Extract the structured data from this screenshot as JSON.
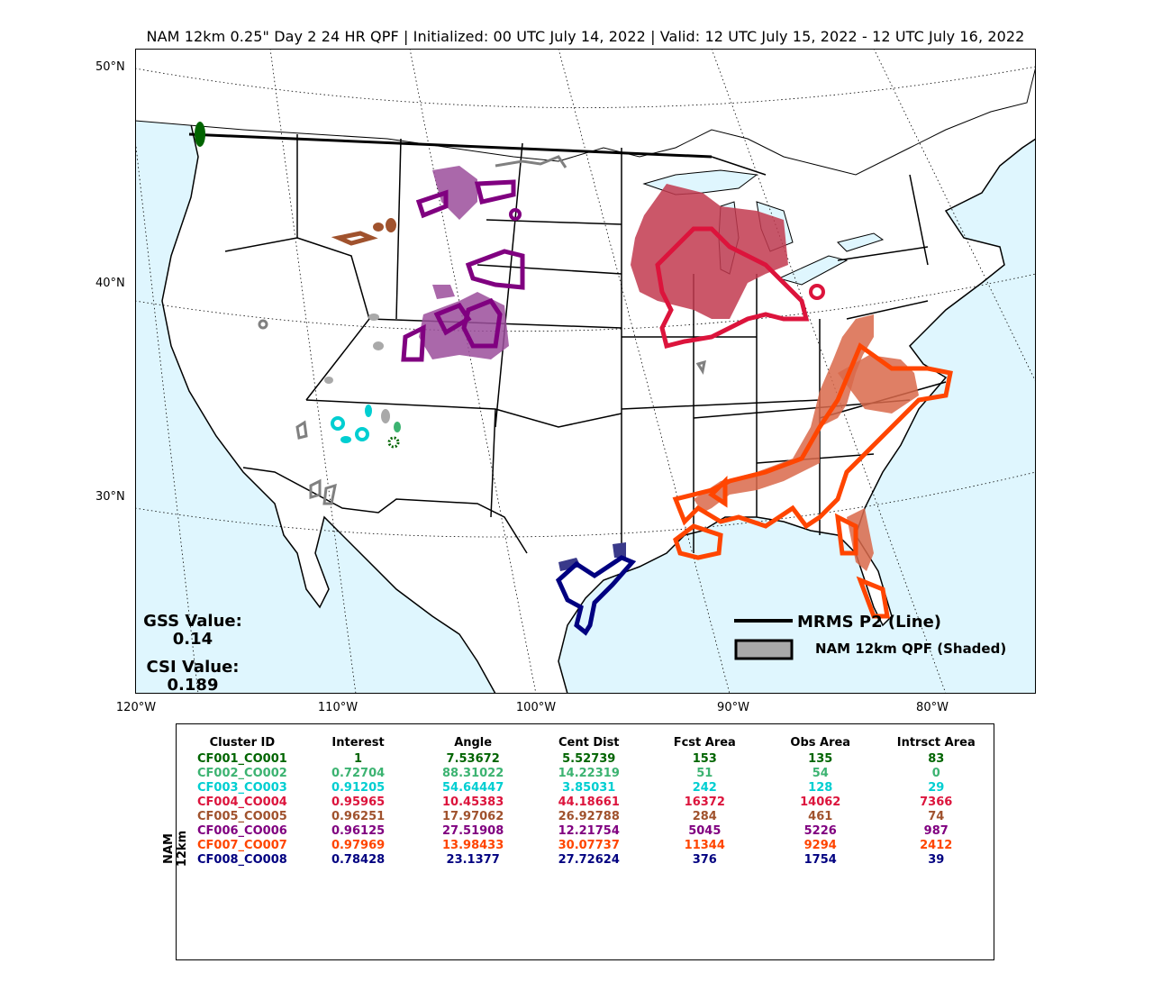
{
  "title": "NAM 12km 0.25\" Day 2 24 HR QPF | Initialized: 00 UTC July 14, 2022 | Valid: 12 UTC July 15, 2022 - 12 UTC July 16, 2022",
  "lat_labels": [
    "50°N",
    "40°N",
    "30°N"
  ],
  "lon_labels": [
    "120°W",
    "110°W",
    "100°W",
    "90°W",
    "80°W"
  ],
  "gss": {
    "label": "GSS Value:",
    "value": "0.14"
  },
  "csi": {
    "label": "CSI Value:",
    "value": "0.189"
  },
  "legend": {
    "line_label": "MRMS P2 (Line)",
    "shaded_label": "NAM 12km QPF (Shaded)"
  },
  "colors": {
    "ocean": "#dff6fe",
    "land": "#ffffff",
    "obs_line": "#000000",
    "qpf_fill": "#a9a9a9",
    "cf001": "#006400",
    "cf002": "#3cb371",
    "cf003": "#00ced1",
    "cf004": "#dc143c",
    "cf005": "#a0522d",
    "cf006": "#800080",
    "cf007": "#ff4500",
    "cf008": "#000080",
    "unmatched": "#808080"
  },
  "table": {
    "side_label": "NAM 12km",
    "headers": [
      "Cluster ID",
      "Interest",
      "Angle",
      "Cent Dist",
      "Fcst Area",
      "Obs Area",
      "Intrsct Area"
    ],
    "rows": [
      {
        "color": "#006400",
        "cells": [
          "CF001_CO001",
          "1",
          "7.53672",
          "5.52739",
          "153",
          "135",
          "83"
        ]
      },
      {
        "color": "#3cb371",
        "cells": [
          "CF002_CO002",
          "0.72704",
          "88.31022",
          "14.22319",
          "51",
          "54",
          "0"
        ]
      },
      {
        "color": "#00ced1",
        "cells": [
          "CF003_CO003",
          "0.91205",
          "54.64447",
          "3.85031",
          "242",
          "128",
          "29"
        ]
      },
      {
        "color": "#dc143c",
        "cells": [
          "CF004_CO004",
          "0.95965",
          "10.45383",
          "44.18661",
          "16372",
          "14062",
          "7366"
        ]
      },
      {
        "color": "#a0522d",
        "cells": [
          "CF005_CO005",
          "0.96251",
          "17.97062",
          "26.92788",
          "284",
          "461",
          "74"
        ]
      },
      {
        "color": "#800080",
        "cells": [
          "CF006_CO006",
          "0.96125",
          "27.51908",
          "12.21754",
          "5045",
          "5226",
          "987"
        ]
      },
      {
        "color": "#ff4500",
        "cells": [
          "CF007_CO007",
          "0.97969",
          "13.98433",
          "30.07737",
          "11344",
          "9294",
          "2412"
        ]
      },
      {
        "color": "#000080",
        "cells": [
          "CF008_CO008",
          "0.78428",
          "23.1377",
          "27.72624",
          "376",
          "1754",
          "39"
        ]
      }
    ]
  }
}
